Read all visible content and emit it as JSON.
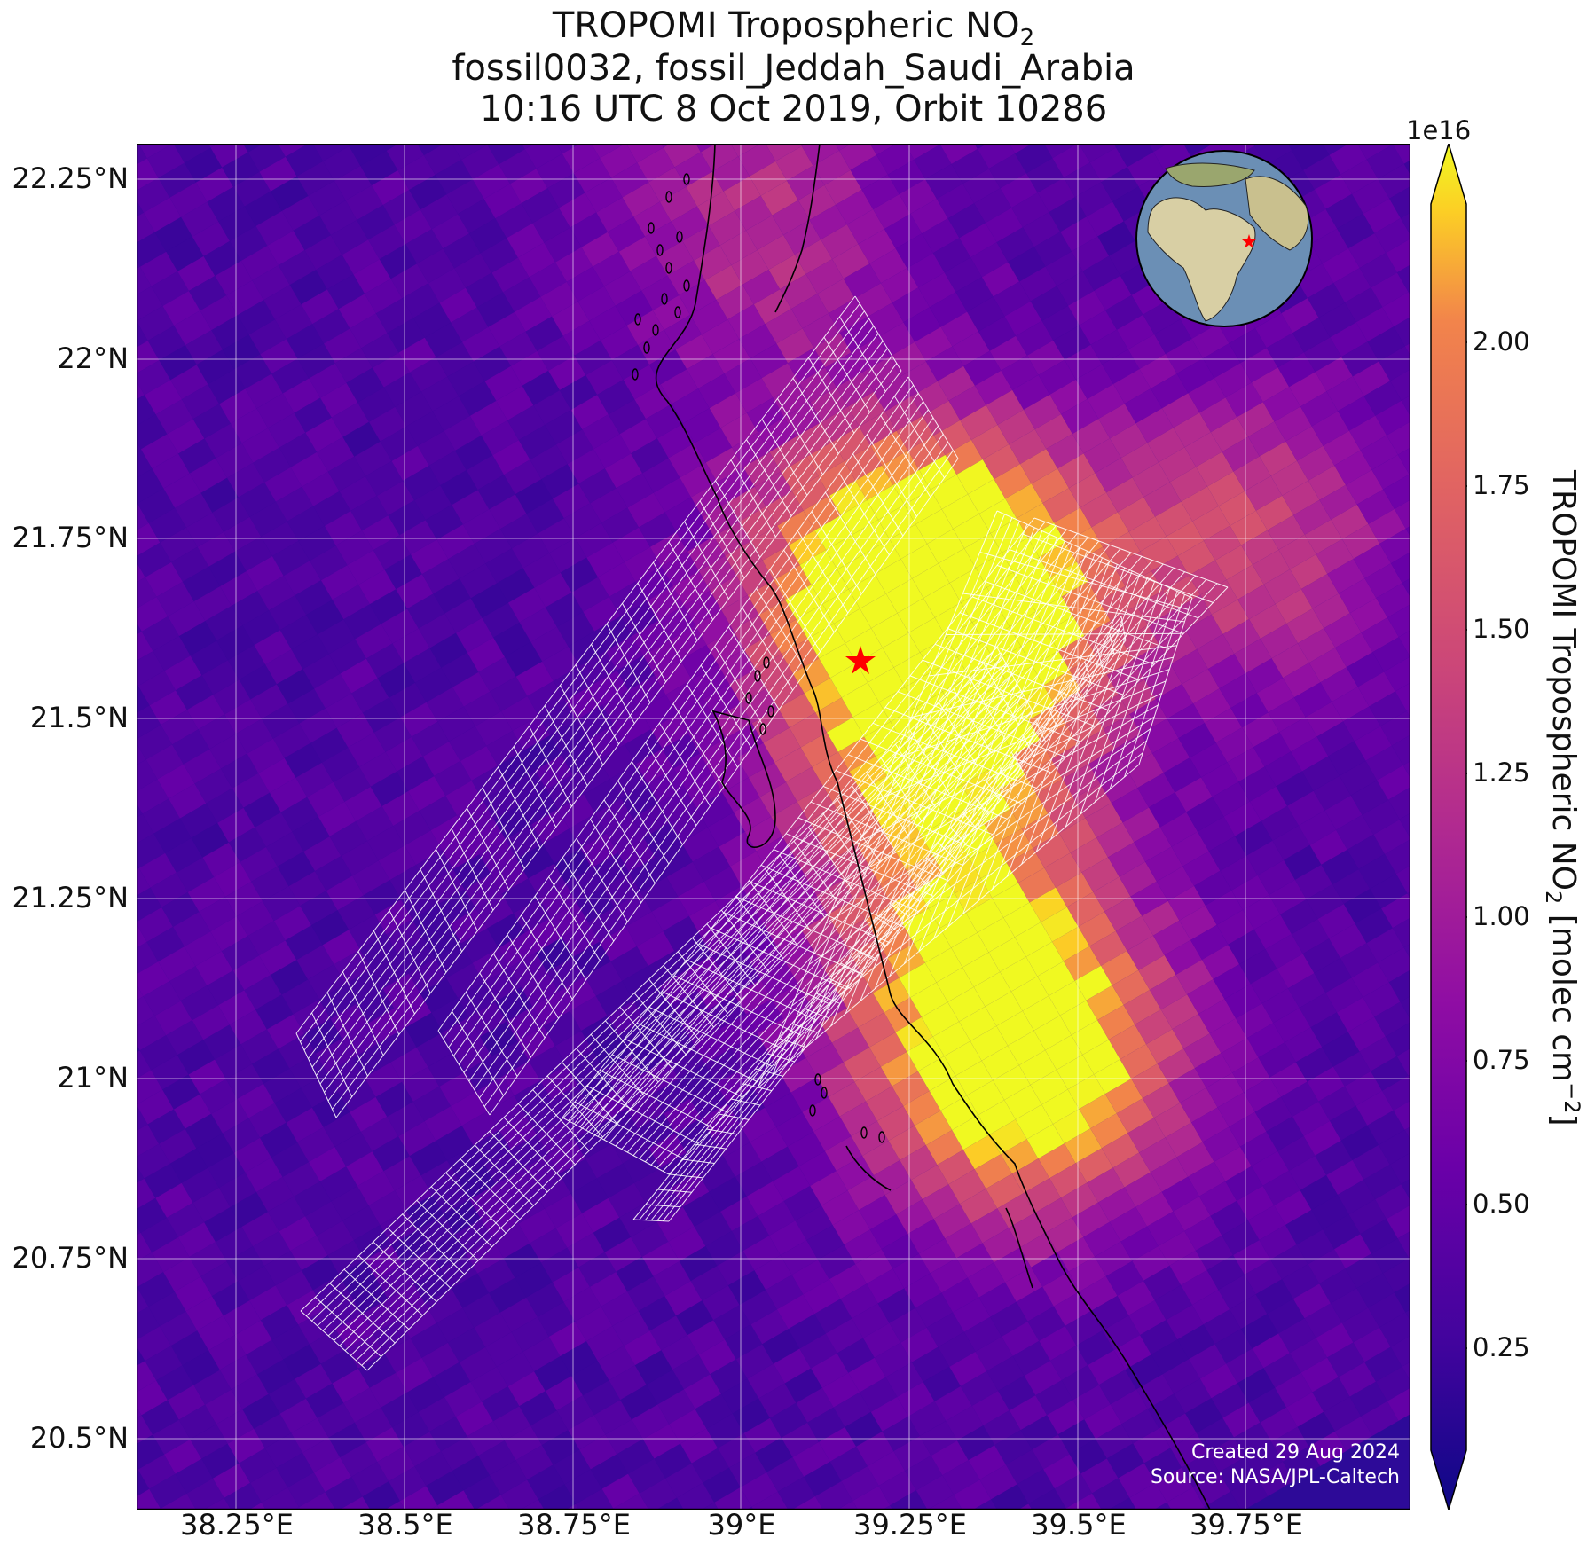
{
  "title": {
    "line1": "TROPOMI Tropospheric NO",
    "line1_sub": "2",
    "line2": "fossil0032, fossil_Jeddah_Saudi_Arabia",
    "line3": "10:16 UTC 8 Oct 2019, Orbit 10286"
  },
  "axes": {
    "lat_labels": [
      "22.25°N",
      "22°N",
      "21.75°N",
      "21.5°N",
      "21.25°N",
      "21°N",
      "20.75°N",
      "20.5°N"
    ],
    "lon_labels": [
      "38.25°E",
      "38.5°E",
      "38.75°E",
      "39°E",
      "39.25°E",
      "39.5°E",
      "39.75°E"
    ]
  },
  "colorbar": {
    "exponent": "1e16",
    "ticks": [
      "2.00",
      "1.75",
      "1.50",
      "1.25",
      "1.00",
      "0.75",
      "0.50",
      "0.25"
    ],
    "label": "TROPOMI Tropospheric NO",
    "label_sub": "2",
    "label_units": " [molec cm",
    "label_sup": "−2",
    "label_end": "]",
    "colormap": "plasma"
  },
  "credits": {
    "created": "Created 29 Aug 2024",
    "source": "Source: NASA/JPL-Caltech"
  },
  "target": {
    "marker": "red-star",
    "color": "#ff0000"
  },
  "colors": {
    "background_low": "#2a0896",
    "high": "#f0f921"
  }
}
